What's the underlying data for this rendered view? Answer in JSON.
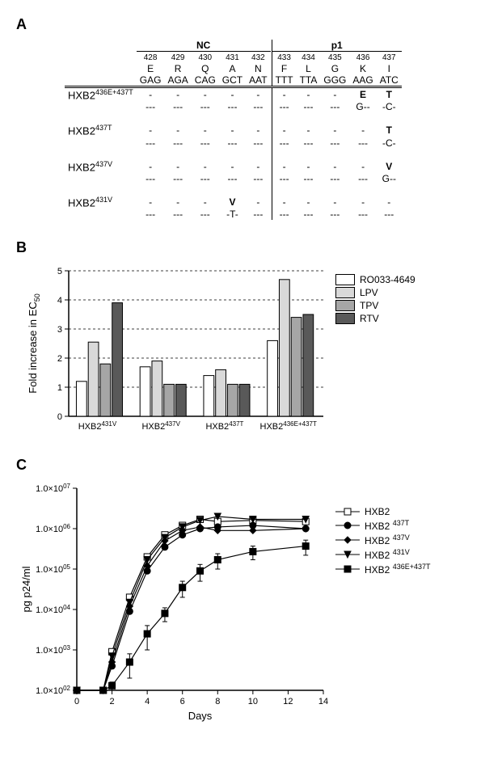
{
  "panelA": {
    "group_left": "NC",
    "group_right": "p1",
    "positions": [
      "428",
      "429",
      "430",
      "431",
      "432",
      "433",
      "434",
      "435",
      "436",
      "437"
    ],
    "aa": [
      "E",
      "R",
      "Q",
      "A",
      "N",
      "F",
      "L",
      "G",
      "K",
      "I"
    ],
    "codons": [
      "GAG",
      "AGA",
      "CAG",
      "GCT",
      "AAT",
      "TTT",
      "TTA",
      "GGG",
      "AAG",
      "ATC"
    ],
    "split_after_index": 4,
    "rows": [
      {
        "label": "HXB2",
        "sup": "436E+437T",
        "aa": [
          "-",
          "-",
          "-",
          "-",
          "-",
          "-",
          "-",
          "-",
          "E",
          "T"
        ],
        "nt": [
          "---",
          "---",
          "---",
          "---",
          "---",
          "---",
          "---",
          "---",
          "G--",
          "-C-"
        ]
      },
      {
        "label": "HXB2",
        "sup": "437T",
        "aa": [
          "-",
          "-",
          "-",
          "-",
          "-",
          "-",
          "-",
          "-",
          "-",
          "T"
        ],
        "nt": [
          "---",
          "---",
          "---",
          "---",
          "---",
          "---",
          "---",
          "---",
          "---",
          "-C-"
        ]
      },
      {
        "label": "HXB2",
        "sup": "437V",
        "aa": [
          "-",
          "-",
          "-",
          "-",
          "-",
          "-",
          "-",
          "-",
          "-",
          "V"
        ],
        "nt": [
          "---",
          "---",
          "---",
          "---",
          "---",
          "---",
          "---",
          "---",
          "---",
          "G--"
        ]
      },
      {
        "label": "HXB2",
        "sup": "431V",
        "aa": [
          "-",
          "-",
          "-",
          "V",
          "-",
          "-",
          "-",
          "-",
          "-",
          "-"
        ],
        "nt": [
          "---",
          "---",
          "---",
          "-T-",
          "---",
          "---",
          "---",
          "---",
          "---",
          "---"
        ]
      }
    ]
  },
  "panelB": {
    "type": "bar",
    "categories_labels": [
      "HXB2 431V",
      "HXB2 437V",
      "HXB2 437T",
      "HXB2 436E+437T"
    ],
    "series": [
      {
        "name": "RO033-4649",
        "color": "#ffffff"
      },
      {
        "name": "LPV",
        "color": "#d9d9d9"
      },
      {
        "name": "TPV",
        "color": "#a6a6a6"
      },
      {
        "name": "RTV",
        "color": "#595959"
      }
    ],
    "values": [
      [
        1.2,
        1.7,
        1.4,
        2.6
      ],
      [
        2.55,
        1.9,
        1.6,
        4.7
      ],
      [
        1.8,
        1.1,
        1.1,
        3.4
      ],
      [
        3.9,
        1.1,
        1.1,
        3.5
      ]
    ],
    "ylabel": "Fold increase in EC50",
    "ylim": [
      0,
      5
    ],
    "ytick_step": 1,
    "axis_fontsize": 12,
    "background_color": "#ffffff",
    "bar_border": "#000000",
    "grid_color": "#000000",
    "bar_width": 0.18,
    "group_gap": 0.3
  },
  "panelC": {
    "type": "line-log",
    "xlabel": "Days",
    "ylabel": "pg p24/ml",
    "xlim": [
      0,
      14
    ],
    "xtick_step": 2,
    "ylim_exp": [
      2,
      7
    ],
    "series": [
      {
        "name": "HXB2",
        "marker": "square-open",
        "dash": "",
        "color": "#000000",
        "x": [
          0,
          1.5,
          2,
          3,
          4,
          5,
          6,
          7,
          8,
          10,
          13
        ],
        "y": [
          100,
          100,
          900,
          20000,
          200000,
          700000,
          1200000,
          1700000,
          1500000,
          1600000,
          1500000
        ]
      },
      {
        "name": "HXB2 437T",
        "marker": "circle",
        "dash": "",
        "color": "#000000",
        "x": [
          0,
          1.5,
          2,
          3,
          4,
          5,
          6,
          7,
          8,
          10,
          13
        ],
        "y": [
          100,
          100,
          400,
          9000,
          90000,
          350000,
          700000,
          1000000,
          1100000,
          1200000,
          1000000
        ]
      },
      {
        "name": "HXB2 437V",
        "marker": "diamond",
        "dash": "",
        "color": "#000000",
        "x": [
          0,
          1.5,
          2,
          3,
          4,
          5,
          6,
          7,
          8,
          10,
          13
        ],
        "y": [
          100,
          100,
          500,
          12000,
          120000,
          500000,
          900000,
          1100000,
          900000,
          900000,
          1000000
        ]
      },
      {
        "name": "HXB2 431V",
        "marker": "triangle-down",
        "dash": "",
        "color": "#000000",
        "x": [
          0,
          1.5,
          2,
          3,
          4,
          5,
          6,
          7,
          8,
          10,
          13
        ],
        "y": [
          100,
          100,
          700,
          15000,
          170000,
          600000,
          1100000,
          1600000,
          2000000,
          1700000,
          1700000
        ]
      },
      {
        "name": "HXB2 436E+437T",
        "marker": "square",
        "dash": "",
        "color": "#000000",
        "x": [
          0,
          1.5,
          2,
          3,
          4,
          5,
          6,
          7,
          8,
          10,
          13
        ],
        "y": [
          100,
          100,
          130,
          500,
          2500,
          8000,
          35000,
          90000,
          170000,
          270000,
          370000
        ],
        "err": [
          0,
          0,
          30,
          300,
          1500,
          3000,
          15000,
          40000,
          70000,
          100000,
          150000
        ]
      }
    ]
  }
}
